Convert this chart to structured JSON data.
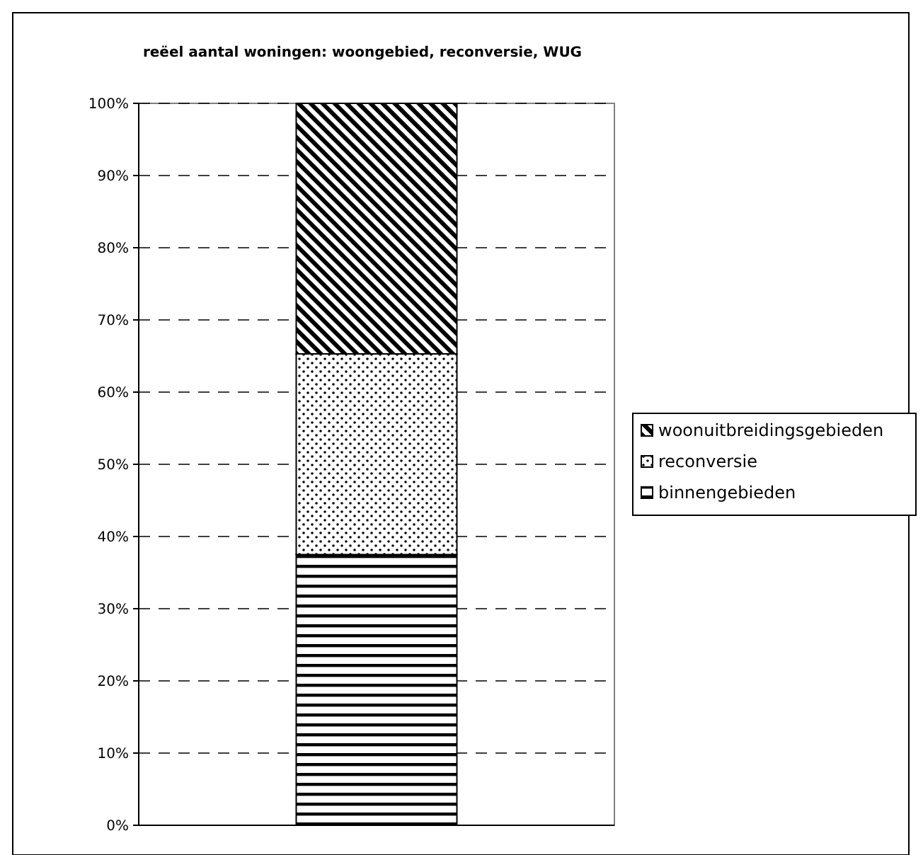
{
  "chart_data": {
    "type": "bar",
    "title": "reëel aantal woningen: woongebied, reconversie, WUG",
    "categories": [
      null
    ],
    "stacked": true,
    "series": [
      {
        "name": "binnengebieden",
        "color": "#000000",
        "values": [
          37.5
        ]
      },
      {
        "name": "reconversie",
        "color": "#000000",
        "values": [
          27.8
        ]
      },
      {
        "name": "woonuitbreidingsgebieden",
        "color": "#000000",
        "values": [
          34.7
        ]
      }
    ],
    "ylim": [
      0,
      100
    ],
    "yticks": [
      {
        "value": 0,
        "label": "0%"
      },
      {
        "value": 10,
        "label": "10%"
      },
      {
        "value": 20,
        "label": "20%"
      },
      {
        "value": 30,
        "label": "30%"
      },
      {
        "value": 40,
        "label": "40%"
      },
      {
        "value": 50,
        "label": "50%"
      },
      {
        "value": 60,
        "label": "60%"
      },
      {
        "value": 70,
        "label": "70%"
      },
      {
        "value": 80,
        "label": "80%"
      },
      {
        "value": 90,
        "label": "90%"
      },
      {
        "value": 100,
        "label": "100%"
      }
    ],
    "grid": "y",
    "legend": "right",
    "tick_labels": "y"
  }
}
